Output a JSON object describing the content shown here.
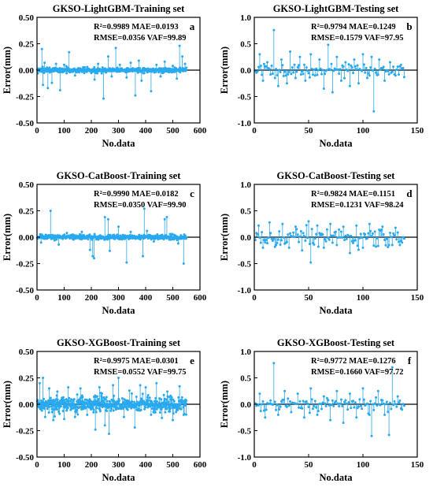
{
  "chart_data": [
    {
      "type": "scatter",
      "panel_letter": "a",
      "title": "GKSO-LightGBM-Training set",
      "xlabel": "No.data",
      "ylabel": "Error(mm)",
      "xlim": [
        0,
        600
      ],
      "ylim": [
        -0.5,
        0.5
      ],
      "xticks": [
        0,
        100,
        200,
        300,
        400,
        500,
        600
      ],
      "xtick_labels": [
        "0",
        "100",
        "200",
        "300",
        "400",
        "500",
        "600"
      ],
      "yticks": [
        -0.5,
        -0.25,
        0,
        0.25,
        0.5
      ],
      "ytick_labels": [
        "-0.50",
        "-0.25",
        "0.00",
        "0.25",
        "0.50"
      ],
      "zero_line": true,
      "metrics_line1": "R²=0.9989 MAE=0.0193",
      "metrics_line2": "RMSE=0.0356 VAF=99.89",
      "n_points": 550,
      "noise_sd": 0.012,
      "spikes": [
        [
          18,
          0.2
        ],
        [
          22,
          -0.14
        ],
        [
          28,
          0.07
        ],
        [
          40,
          -0.17
        ],
        [
          55,
          -0.12
        ],
        [
          70,
          0.06
        ],
        [
          85,
          -0.19
        ],
        [
          100,
          0.05
        ],
        [
          118,
          0.17
        ],
        [
          140,
          -0.05
        ],
        [
          185,
          0.03
        ],
        [
          212,
          -0.09
        ],
        [
          225,
          0.06
        ],
        [
          245,
          -0.27
        ],
        [
          262,
          0.13
        ],
        [
          275,
          -0.06
        ],
        [
          290,
          0.21
        ],
        [
          305,
          0.05
        ],
        [
          330,
          -0.07
        ],
        [
          345,
          0.07
        ],
        [
          362,
          -0.24
        ],
        [
          375,
          0.09
        ],
        [
          385,
          -0.1
        ],
        [
          420,
          -0.2
        ],
        [
          440,
          0.05
        ],
        [
          455,
          -0.06
        ],
        [
          470,
          0.08
        ],
        [
          500,
          0.04
        ],
        [
          515,
          -0.08
        ],
        [
          525,
          0.23
        ],
        [
          535,
          0.13
        ],
        [
          545,
          0.06
        ]
      ]
    },
    {
      "type": "scatter",
      "panel_letter": "b",
      "title": "GKSO-LightGBM-Testing set",
      "xlabel": "No.data",
      "ylabel": "Error(mm)",
      "xlim": [
        0,
        150
      ],
      "ylim": [
        -1.0,
        1.0
      ],
      "xticks": [
        0,
        50,
        100,
        150
      ],
      "xtick_labels": [
        "0",
        "50",
        "100",
        "150"
      ],
      "yticks": [
        -1.0,
        -0.5,
        0,
        0.5,
        1.0
      ],
      "ytick_labels": [
        "-1.0",
        "-0.5",
        "0.0",
        "0.5",
        "1.0"
      ],
      "zero_line": true,
      "metrics_line1": "R²=0.9794 MAE=0.1249",
      "metrics_line2": "RMSE=0.1579 VAF=97.95",
      "n_points": 138,
      "noise_sd": 0.06,
      "spikes": [
        [
          5,
          0.3
        ],
        [
          8,
          -0.2
        ],
        [
          12,
          0.15
        ],
        [
          18,
          0.76
        ],
        [
          22,
          -0.3
        ],
        [
          25,
          0.2
        ],
        [
          30,
          -0.25
        ],
        [
          33,
          0.35
        ],
        [
          38,
          -0.15
        ],
        [
          42,
          0.25
        ],
        [
          47,
          -0.2
        ],
        [
          52,
          0.3
        ],
        [
          56,
          -0.1
        ],
        [
          60,
          0.2
        ],
        [
          64,
          -0.35
        ],
        [
          68,
          0.48
        ],
        [
          72,
          -0.42
        ],
        [
          76,
          0.25
        ],
        [
          80,
          -0.2
        ],
        [
          84,
          0.15
        ],
        [
          88,
          -0.3
        ],
        [
          92,
          0.2
        ],
        [
          96,
          -0.25
        ],
        [
          100,
          0.3
        ],
        [
          104,
          -0.15
        ],
        [
          108,
          0.25
        ],
        [
          110,
          -0.78
        ],
        [
          115,
          0.2
        ],
        [
          120,
          -0.2
        ],
        [
          125,
          0.15
        ],
        [
          130,
          -0.1
        ],
        [
          135,
          0.1
        ]
      ]
    },
    {
      "type": "scatter",
      "panel_letter": "c",
      "title": "GKSO-CatBoost-Training set",
      "xlabel": "No.data",
      "ylabel": "Error(mm)",
      "xlim": [
        0,
        600
      ],
      "ylim": [
        -0.5,
        0.5
      ],
      "xticks": [
        0,
        100,
        200,
        300,
        400,
        500,
        600
      ],
      "xtick_labels": [
        "0",
        "100",
        "200",
        "300",
        "400",
        "500",
        "600"
      ],
      "yticks": [
        -0.5,
        -0.25,
        0,
        0.25,
        0.5
      ],
      "ytick_labels": [
        "-0.50",
        "-0.25",
        "0.00",
        "0.25",
        "0.50"
      ],
      "zero_line": true,
      "metrics_line1": "R²=0.9990 MAE=0.0182",
      "metrics_line2": "RMSE=0.0350 VAF=99.90",
      "n_points": 550,
      "noise_sd": 0.01,
      "spikes": [
        [
          15,
          -0.05
        ],
        [
          50,
          0.25
        ],
        [
          65,
          -0.03
        ],
        [
          80,
          -0.07
        ],
        [
          110,
          0.04
        ],
        [
          165,
          0.05
        ],
        [
          195,
          -0.12
        ],
        [
          205,
          -0.18
        ],
        [
          210,
          -0.2
        ],
        [
          250,
          0.19
        ],
        [
          262,
          0.17
        ],
        [
          268,
          -0.13
        ],
        [
          300,
          0.1
        ],
        [
          330,
          -0.24
        ],
        [
          345,
          0.05
        ],
        [
          390,
          -0.18
        ],
        [
          395,
          0.27
        ],
        [
          405,
          0.06
        ],
        [
          430,
          -0.04
        ],
        [
          470,
          0.17
        ],
        [
          478,
          0.19
        ],
        [
          490,
          0.03
        ],
        [
          520,
          -0.06
        ],
        [
          540,
          -0.25
        ]
      ]
    },
    {
      "type": "scatter",
      "panel_letter": "d",
      "title": "GKSO-CatBoost-Testing set",
      "xlabel": "No.data",
      "ylabel": "Error(mm)",
      "xlim": [
        0,
        150
      ],
      "ylim": [
        -1.0,
        1.0
      ],
      "xticks": [
        0,
        50,
        100,
        150
      ],
      "xtick_labels": [
        "0",
        "50",
        "100",
        "150"
      ],
      "yticks": [
        -1.0,
        -0.5,
        0,
        0.5,
        1.0
      ],
      "ytick_labels": [
        "-1.0",
        "-0.5",
        "0.0",
        "0.5",
        "1.0"
      ],
      "zero_line": true,
      "metrics_line1": "R²=0.9824 MAE=0.1151",
      "metrics_line2": "RMSE=0.1231 VAF=98.24",
      "n_points": 138,
      "noise_sd": 0.09,
      "spikes": [
        [
          4,
          0.22
        ],
        [
          8,
          -0.2
        ],
        [
          14,
          0.28
        ],
        [
          20,
          -0.15
        ],
        [
          26,
          0.25
        ],
        [
          32,
          -0.2
        ],
        [
          38,
          0.2
        ],
        [
          44,
          -0.25
        ],
        [
          50,
          0.3
        ],
        [
          52,
          -0.48
        ],
        [
          58,
          0.22
        ],
        [
          64,
          -0.2
        ],
        [
          70,
          0.25
        ],
        [
          76,
          -0.15
        ],
        [
          82,
          0.2
        ],
        [
          88,
          -0.3
        ],
        [
          94,
          0.22
        ],
        [
          100,
          -0.2
        ],
        [
          106,
          0.25
        ],
        [
          112,
          -0.18
        ],
        [
          118,
          0.2
        ],
        [
          124,
          -0.15
        ],
        [
          130,
          0.18
        ],
        [
          136,
          -0.1
        ]
      ]
    },
    {
      "type": "scatter",
      "panel_letter": "e",
      "title": "GKSO-XGBoost-Training set",
      "xlabel": "No.data",
      "ylabel": "Error(mm)",
      "xlim": [
        0,
        600
      ],
      "ylim": [
        -0.5,
        0.5
      ],
      "xticks": [
        0,
        100,
        200,
        300,
        400,
        500,
        600
      ],
      "xtick_labels": [
        "0",
        "100",
        "200",
        "300",
        "400",
        "500",
        "600"
      ],
      "yticks": [
        -0.5,
        -0.25,
        0,
        0.25,
        0.5
      ],
      "ytick_labels": [
        "-0.50",
        "-0.25",
        "0.00",
        "0.25",
        "0.50"
      ],
      "zero_line": true,
      "metrics_line1": "R²=0.9975 MAE=0.0301",
      "metrics_line2": "RMSE=0.0552 VAF=99.75",
      "n_points": 550,
      "noise_sd": 0.04,
      "spikes": [
        [
          10,
          0.2
        ],
        [
          22,
          0.25
        ],
        [
          30,
          -0.12
        ],
        [
          45,
          0.15
        ],
        [
          60,
          -0.15
        ],
        [
          75,
          0.12
        ],
        [
          100,
          -0.14
        ],
        [
          115,
          0.16
        ],
        [
          140,
          -0.12
        ],
        [
          160,
          0.15
        ],
        [
          185,
          -0.1
        ],
        [
          215,
          -0.24
        ],
        [
          230,
          0.16
        ],
        [
          250,
          -0.2
        ],
        [
          265,
          -0.28
        ],
        [
          280,
          0.18
        ],
        [
          300,
          0.25
        ],
        [
          320,
          -0.12
        ],
        [
          340,
          0.13
        ],
        [
          360,
          -0.22
        ],
        [
          380,
          0.18
        ],
        [
          400,
          0.16
        ],
        [
          420,
          -0.1
        ],
        [
          440,
          0.2
        ],
        [
          460,
          -0.13
        ],
        [
          480,
          0.12
        ],
        [
          500,
          -0.15
        ],
        [
          525,
          0.17
        ],
        [
          540,
          -0.1
        ]
      ]
    },
    {
      "type": "scatter",
      "panel_letter": "f",
      "title": "GKSO-XGBoost-Testing set",
      "xlabel": "No.data",
      "ylabel": "Error(mm)",
      "xlim": [
        0,
        150
      ],
      "ylim": [
        -1.0,
        1.0
      ],
      "xticks": [
        0,
        50,
        100,
        150
      ],
      "xtick_labels": [
        "0",
        "50",
        "100",
        "150"
      ],
      "yticks": [
        -1.0,
        -0.5,
        0,
        0.5,
        1.0
      ],
      "ytick_labels": [
        "-1.0",
        "-0.5",
        "0.0",
        "0.5",
        "1.0"
      ],
      "zero_line": true,
      "metrics_line1": "R²=0.9772 MAE=0.1276",
      "metrics_line2": "RMSE=0.1660 VAF=97.72",
      "n_points": 138,
      "noise_sd": 0.06,
      "spikes": [
        [
          5,
          0.2
        ],
        [
          10,
          -0.25
        ],
        [
          18,
          0.78
        ],
        [
          22,
          -0.2
        ],
        [
          28,
          0.25
        ],
        [
          34,
          -0.15
        ],
        [
          40,
          0.2
        ],
        [
          46,
          -0.25
        ],
        [
          52,
          0.3
        ],
        [
          58,
          -0.2
        ],
        [
          64,
          0.15
        ],
        [
          70,
          -0.3
        ],
        [
          76,
          0.25
        ],
        [
          82,
          -0.35
        ],
        [
          88,
          0.2
        ],
        [
          94,
          -0.25
        ],
        [
          100,
          0.3
        ],
        [
          106,
          -0.2
        ],
        [
          108,
          -0.6
        ],
        [
          114,
          0.25
        ],
        [
          120,
          -0.2
        ],
        [
          124,
          -0.58
        ],
        [
          127,
          0.7
        ],
        [
          132,
          0.15
        ],
        [
          136,
          -0.1
        ]
      ]
    }
  ],
  "colors": {
    "marker": "#29a9ee",
    "stem": "#29a9ee",
    "zero_line": "#000000",
    "axis": "#000000"
  }
}
